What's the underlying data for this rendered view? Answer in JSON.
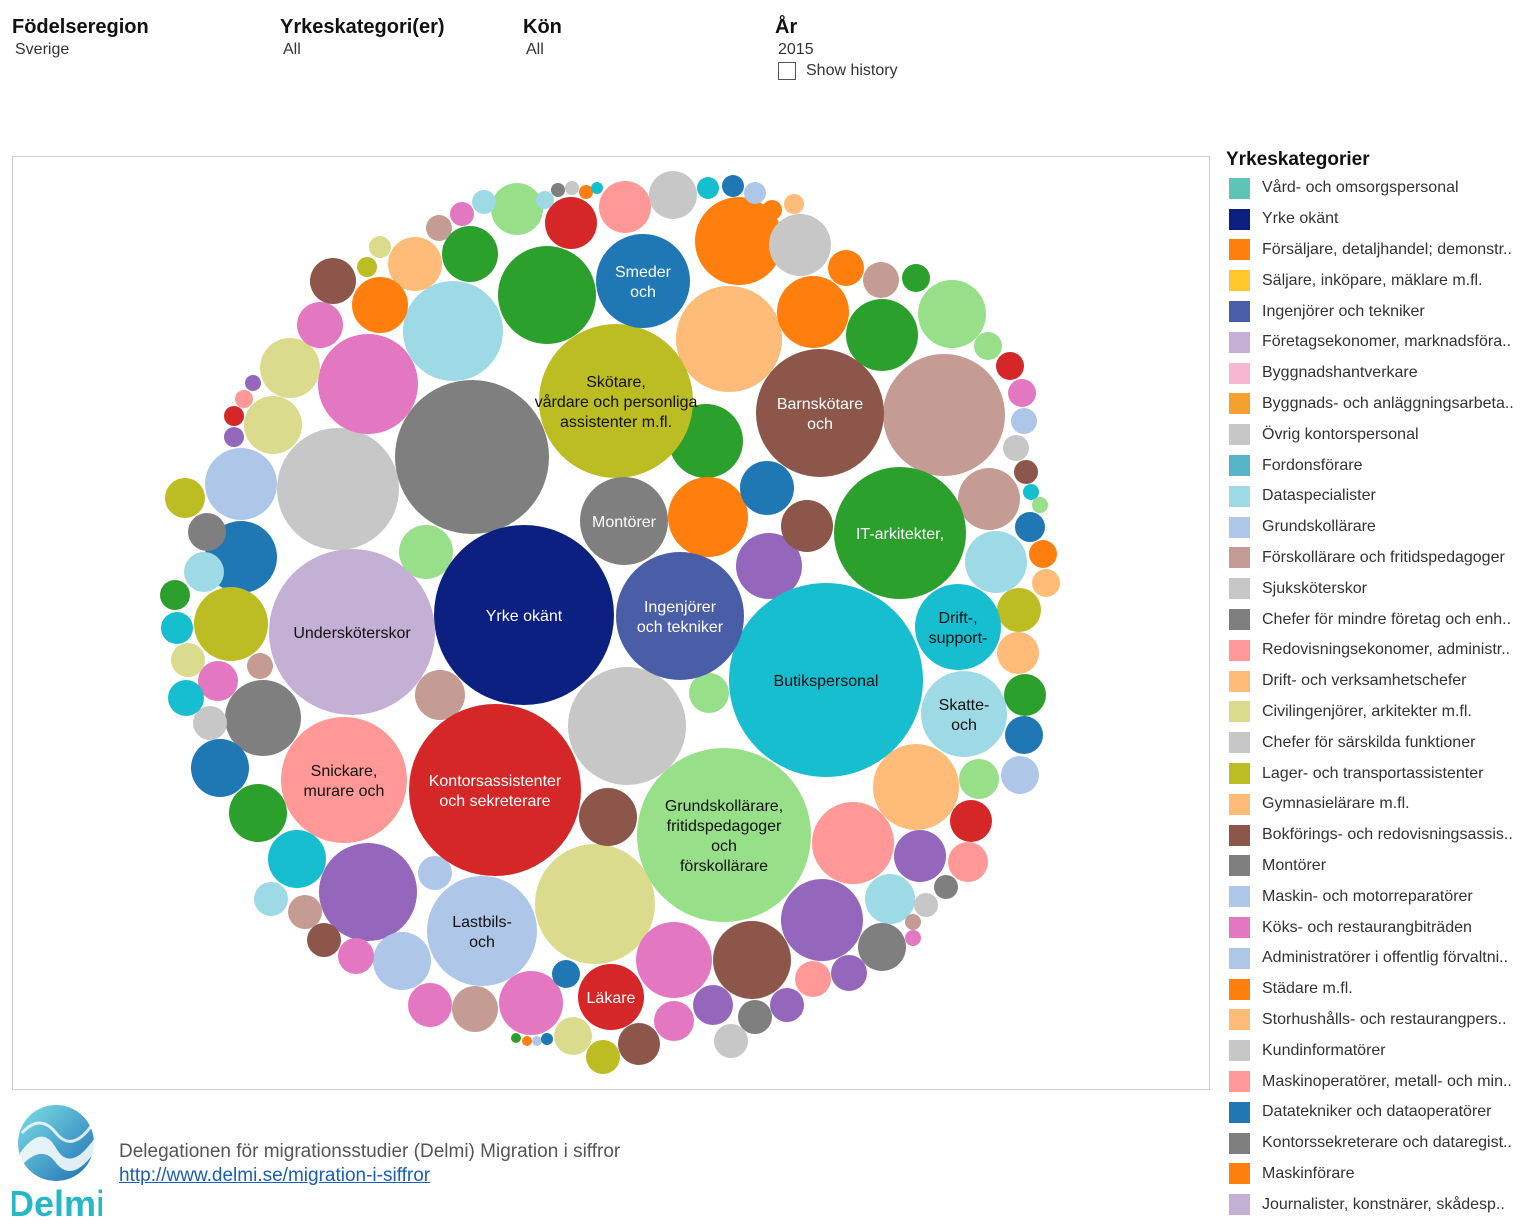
{
  "filters": [
    {
      "label": "Födelseregion",
      "value": "Sverige"
    },
    {
      "label": "Yrkeskategori(er)",
      "value": "All"
    },
    {
      "label": "Kön",
      "value": "All"
    },
    {
      "label": "År",
      "value": "2015"
    }
  ],
  "show_history": {
    "label": "Show history",
    "checked": false
  },
  "legend": {
    "title": "Yrkeskategorier",
    "items": [
      {
        "label": "Vård- och omsorgspersonal",
        "color": "#5ec5b6"
      },
      {
        "label": "Yrke okänt",
        "color": "#0b2080"
      },
      {
        "label": "Försäljare, detaljhandel; demonstr..",
        "color": "#ff7f0e"
      },
      {
        "label": "Säljare, inköpare, mäklare m.fl.",
        "color": "#ffc72c"
      },
      {
        "label": "Ingenjörer och tekniker",
        "color": "#4a5ea8"
      },
      {
        "label": "Företagsekonomer, marknadsföra..",
        "color": "#c5b0d5"
      },
      {
        "label": "Byggnadshantverkare",
        "color": "#f7b6d2"
      },
      {
        "label": "Byggnads- och anläggningsarbeta..",
        "color": "#f5a12f"
      },
      {
        "label": "Övrig kontorspersonal",
        "color": "#c7c7c7"
      },
      {
        "label": "Fordonsförare",
        "color": "#57b5c9"
      },
      {
        "label": "Dataspecialister",
        "color": "#9edae5"
      },
      {
        "label": "Grundskollärare",
        "color": "#aec7e8"
      },
      {
        "label": "Förskollärare och fritidspedagoger",
        "color": "#c49c94"
      },
      {
        "label": "Sjuksköterskor",
        "color": "#c7c7c7"
      },
      {
        "label": "Chefer för mindre företag och enh..",
        "color": "#7f7f7f"
      },
      {
        "label": "Redovisningsekonomer, administr..",
        "color": "#ff9896"
      },
      {
        "label": "Drift- och verksamhetschefer",
        "color": "#ffbb78"
      },
      {
        "label": "Civilingenjörer, arkitekter m.fl.",
        "color": "#dbdb8d"
      },
      {
        "label": "Chefer för särskilda funktioner",
        "color": "#c7c7c7"
      },
      {
        "label": "Lager- och transportassistenter",
        "color": "#bcbd22"
      },
      {
        "label": "Gymnasielärare m.fl.",
        "color": "#ffbb78"
      },
      {
        "label": "Bokförings- och redovisningsassis..",
        "color": "#8c564b"
      },
      {
        "label": "Montörer",
        "color": "#7f7f7f"
      },
      {
        "label": "Maskin- och motorreparatörer",
        "color": "#aec7e8"
      },
      {
        "label": "Köks- och restaurangbiträden",
        "color": "#e377c2"
      },
      {
        "label": "Administratörer i offentlig förvaltni..",
        "color": "#aec7e8"
      },
      {
        "label": "Städare m.fl.",
        "color": "#ff7f0e"
      },
      {
        "label": "Storhushålls- och restaurangpers..",
        "color": "#ffbb78"
      },
      {
        "label": "Kundinformatörer",
        "color": "#c7c7c7"
      },
      {
        "label": "Maskinoperatörer, metall- och min..",
        "color": "#ff9896"
      },
      {
        "label": "Datatekniker och dataoperatörer",
        "color": "#1f77b4"
      },
      {
        "label": "Kontorssekreterare och dataregist..",
        "color": "#7f7f7f"
      },
      {
        "label": "Maskinförare",
        "color": "#ff7f0e"
      },
      {
        "label": "Journalister, konstnärer, skådesp..",
        "color": "#c5b0d5"
      }
    ]
  },
  "chart_data": {
    "type": "bubble",
    "title": "",
    "labeled_bubbles": [
      {
        "label": "Yrke okänt",
        "color": "#0b2080",
        "text_color": "#ffffff"
      },
      {
        "label": "Butikspersonal",
        "color": "#17becf",
        "text_color": "#111111"
      },
      {
        "label": "Undersköterskor",
        "color": "#c5b0d5",
        "text_color": "#111111"
      },
      {
        "label": "Grundskollärare, fritidspedagoger och förskollärare",
        "color": "#98df8a",
        "text_color": "#111111"
      },
      {
        "label": "Kontorsassistenter och sekreterare",
        "color": "#d62728",
        "text_color": "#ffffff"
      },
      {
        "label": "Skötare, vårdare och personliga assistenter m.fl.",
        "color": "#bcbd22",
        "text_color": "#111111"
      },
      {
        "label": "Ingenjörer och tekniker",
        "color": "#4a5ea8",
        "text_color": "#ffffff"
      },
      {
        "label": "IT-arkitekter,",
        "color": "#2ca02c",
        "text_color": "#ffffff"
      },
      {
        "label": "Barnskötare och",
        "color": "#8c564b",
        "text_color": "#ffffff"
      },
      {
        "label": "Snickare, murare och",
        "color": "#ff9896",
        "text_color": "#111111"
      },
      {
        "label": "Lastbils- och",
        "color": "#aec7e8",
        "text_color": "#111111"
      },
      {
        "label": "Smeder och",
        "color": "#1f77b4",
        "text_color": "#ffffff"
      },
      {
        "label": "Montörer",
        "color": "#7f7f7f",
        "text_color": "#ffffff"
      },
      {
        "label": "Drift-, support-",
        "color": "#17becf",
        "text_color": "#111111"
      },
      {
        "label": "Skatte- och",
        "color": "#9edae5",
        "text_color": "#111111"
      },
      {
        "label": "Läkare",
        "color": "#d62728",
        "text_color": "#ffffff"
      }
    ],
    "unlabeled_bubble_colors": [
      "#7f7f7f",
      "#c7c7c7",
      "#dbdb8d",
      "#ffbb78",
      "#c49c94",
      "#e377c2",
      "#9edae5",
      "#f7b6d2",
      "#ff7f0e",
      "#2ca02c",
      "#9467bd",
      "#1f77b4",
      "#aec7e8",
      "#ff9896",
      "#8c564b",
      "#bcbd22",
      "#17becf",
      "#98df8a",
      "#d62728"
    ]
  },
  "footer": {
    "logo_text": "Delmi",
    "line1": "Delegationen för migrationsstudier (Delmi) Migration i siffror",
    "link": "http://www.delmi.se/migration-i-siffror"
  }
}
